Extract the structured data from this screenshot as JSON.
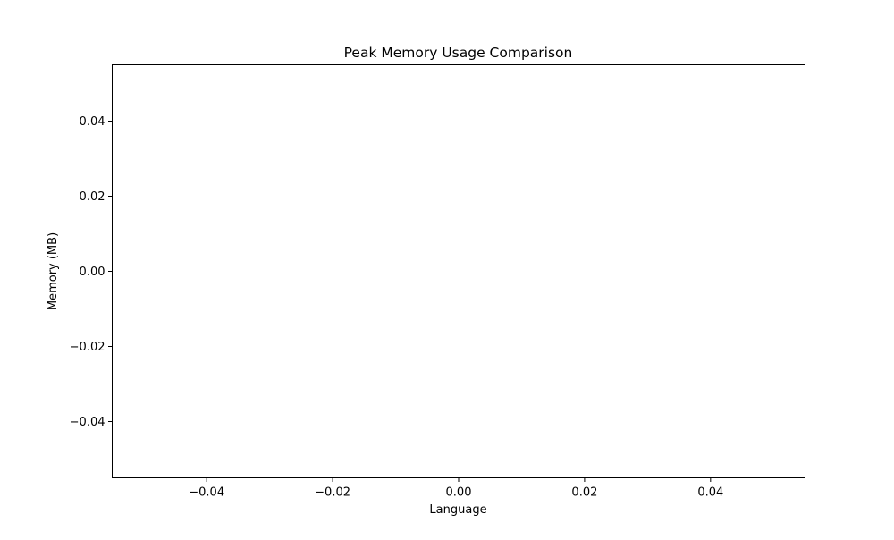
{
  "chart_data": {
    "type": "bar",
    "title": "Peak Memory Usage Comparison",
    "xlabel": "Language",
    "ylabel": "Memory (MB)",
    "categories": [],
    "values": [],
    "xlim": [
      -0.055,
      0.055
    ],
    "ylim": [
      -0.055,
      0.055
    ],
    "xticks": [
      -0.04,
      -0.02,
      0.0,
      0.02,
      0.04
    ],
    "xtick_labels": [
      "−0.04",
      "−0.02",
      "0.00",
      "0.02",
      "0.04"
    ],
    "yticks": [
      0.04,
      0.02,
      0.0,
      -0.02,
      -0.04
    ],
    "ytick_labels": [
      "0.04",
      "0.02",
      "0.00",
      "−0.02",
      "−0.04"
    ],
    "grid": false,
    "legend": "none",
    "colors": {
      "axes": "#000000",
      "background": "#ffffff"
    }
  }
}
